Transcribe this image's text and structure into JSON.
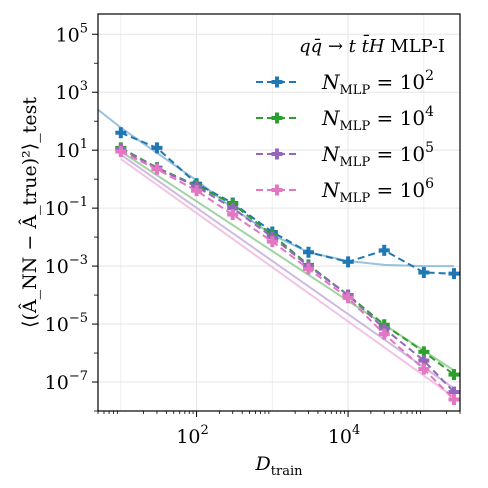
{
  "chart_data": {
    "type": "line",
    "title": "q̄q → t t̄H MLP-I",
    "title_parts": {
      "main": "qq̄ → t t̄H",
      "suffix": "MLP-I"
    },
    "xlabel": {
      "base": "D",
      "sub": "train"
    },
    "ylabel": {
      "text": "⟨(Â_NN − Â_true)²⟩_test"
    },
    "xscale": "log",
    "yscale": "log",
    "xlim": [
      5,
      300000
    ],
    "ylim": [
      1e-08,
      500000.0
    ],
    "x_ticks": [
      {
        "value": 100,
        "base": "10",
        "exp": "2"
      },
      {
        "value": 10000,
        "base": "10",
        "exp": "4"
      }
    ],
    "y_ticks": [
      {
        "value": 100000.0,
        "base": "10",
        "exp": "5"
      },
      {
        "value": 1000.0,
        "base": "10",
        "exp": "3"
      },
      {
        "value": 10.0,
        "base": "10",
        "exp": "1"
      },
      {
        "value": 0.1,
        "base": "10",
        "exp": "−1"
      },
      {
        "value": 0.001,
        "base": "10",
        "exp": "−3"
      },
      {
        "value": 1e-05,
        "base": "10",
        "exp": "−5"
      },
      {
        "value": 1e-07,
        "base": "10",
        "exp": "−7"
      }
    ],
    "grid": true,
    "legend_position": "top-right",
    "series": [
      {
        "label": {
          "main": "N",
          "sub": "MLP",
          "rhs": "= 10",
          "exp": "2"
        },
        "color": "#1f77b4",
        "fit_color": "#8fbbd9",
        "x": [
          10,
          30,
          100,
          300,
          1000,
          3000,
          10000,
          30000,
          100000,
          250000
        ],
        "y": [
          40,
          12,
          0.7,
          0.15,
          0.015,
          0.003,
          0.0014,
          0.0035,
          0.0006,
          0.00055
        ],
        "fit": {
          "x": [
            5,
            10,
            30,
            100,
            300,
            1000,
            3000,
            10000,
            30000,
            100000,
            250000
          ],
          "y": [
            250,
            60,
            8,
            0.9,
            0.1,
            0.012,
            0.003,
            0.0015,
            0.0011,
            0.001,
            0.001
          ]
        }
      },
      {
        "label": {
          "main": "N",
          "sub": "MLP",
          "rhs": "= 10",
          "exp": "4"
        },
        "color": "#2ca02c",
        "fit_color": "#96cf96",
        "x": [
          10,
          30,
          100,
          300,
          1000,
          3000,
          10000,
          30000,
          100000,
          250000
        ],
        "y": [
          12,
          2.5,
          0.6,
          0.14,
          0.012,
          0.0011,
          0.0001,
          9.5e-06,
          1.1e-06,
          1.8e-07
        ],
        "fit": {
          "x": [
            10,
            250000
          ],
          "y": [
            9,
            2.5e-07
          ]
        }
      },
      {
        "label": {
          "main": "N",
          "sub": "MLP",
          "rhs": "= 10",
          "exp": "5"
        },
        "color": "#9467bd",
        "fit_color": "#c9b3de",
        "x": [
          10,
          30,
          100,
          300,
          1000,
          3000,
          10000,
          30000,
          100000,
          250000
        ],
        "y": [
          11,
          2.4,
          0.55,
          0.1,
          0.01,
          0.001,
          0.0001,
          7e-06,
          5.5e-07,
          4.5e-08
        ],
        "fit": {
          "x": [
            10,
            250000
          ],
          "y": [
            7,
            6e-08
          ]
        }
      },
      {
        "label": {
          "main": "N",
          "sub": "MLP",
          "rhs": "= 10",
          "exp": "6"
        },
        "color": "#e377c2",
        "fit_color": "#f1bbe1",
        "x": [
          10,
          30,
          100,
          300,
          1000,
          3000,
          10000,
          30000,
          100000,
          250000
        ],
        "y": [
          9,
          2.2,
          0.4,
          0.06,
          0.007,
          0.0008,
          8e-05,
          4.5e-06,
          2.8e-07,
          2.5e-08
        ],
        "fit": {
          "x": [
            10,
            250000
          ],
          "y": [
            5,
            3e-08
          ]
        }
      }
    ]
  }
}
